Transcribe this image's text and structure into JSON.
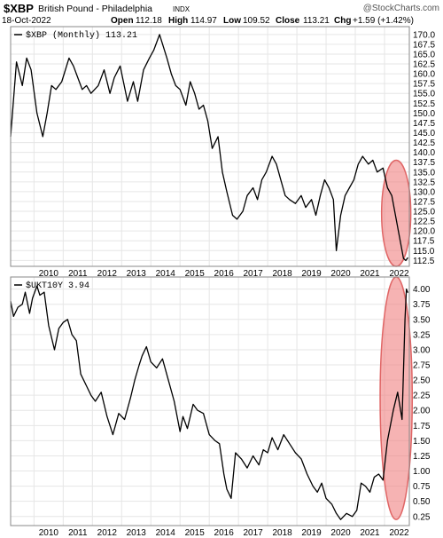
{
  "header": {
    "symbol": "$XBP",
    "name": "British Pound - Philadelphia",
    "exchange": "INDX",
    "date": "18-Oct-2022",
    "open_label": "Open",
    "open": "112.18",
    "high_label": "High",
    "high": "114.97",
    "low_label": "Low",
    "low": "109.52",
    "close_label": "Close",
    "close": "113.21",
    "chg_label": "Chg",
    "chg": "+1.59 (+1.42%)",
    "watermark": "@StockCharts.com"
  },
  "chart_data": [
    {
      "type": "line",
      "legend": "$XBP (Monthly) 113.21",
      "x_range": [
        2009.2,
        2022.85
      ],
      "ylim": [
        111,
        172
      ],
      "y_ticks": [
        112.5,
        115,
        117.5,
        120,
        122.5,
        125,
        127.5,
        130,
        132.5,
        135,
        137.5,
        140,
        142.5,
        145,
        147.5,
        150,
        152.5,
        155,
        157.5,
        160,
        162.5,
        165,
        167.5,
        170
      ],
      "x_ticks": [
        "2010",
        "2011",
        "2012",
        "2013",
        "2014",
        "2015",
        "2016",
        "2017",
        "2018",
        "2019",
        "2020",
        "2021",
        "2022"
      ],
      "grid": true,
      "x": [
        2009.2,
        2009.4,
        2009.6,
        2009.75,
        2009.9,
        2010.1,
        2010.3,
        2010.45,
        2010.6,
        2010.75,
        2010.95,
        2011.2,
        2011.35,
        2011.5,
        2011.65,
        2011.8,
        2011.95,
        2012.2,
        2012.4,
        2012.6,
        2012.75,
        2012.95,
        2013.2,
        2013.4,
        2013.55,
        2013.75,
        2013.95,
        2014.1,
        2014.3,
        2014.55,
        2014.7,
        2014.85,
        2015.0,
        2015.2,
        2015.35,
        2015.5,
        2015.65,
        2015.8,
        2015.95,
        2016.1,
        2016.3,
        2016.45,
        2016.6,
        2016.8,
        2016.95,
        2017.15,
        2017.3,
        2017.5,
        2017.65,
        2017.8,
        2017.95,
        2018.15,
        2018.3,
        2018.45,
        2018.6,
        2018.75,
        2018.95,
        2019.15,
        2019.3,
        2019.5,
        2019.65,
        2019.8,
        2019.95,
        2020.1,
        2020.25,
        2020.35,
        2020.5,
        2020.65,
        2020.8,
        2020.95,
        2021.1,
        2021.25,
        2021.45,
        2021.6,
        2021.75,
        2021.95,
        2022.1,
        2022.25,
        2022.35,
        2022.45,
        2022.55,
        2022.65,
        2022.73,
        2022.8
      ],
      "values": [
        144,
        163,
        157,
        164,
        161,
        150,
        144,
        150,
        157,
        156,
        158,
        164,
        162,
        159,
        156,
        157,
        155,
        157,
        161,
        155,
        159,
        162,
        153,
        158,
        153,
        161,
        164,
        166,
        170,
        164,
        160,
        157,
        156,
        152,
        158,
        155,
        151,
        152,
        148,
        141,
        144,
        135,
        130,
        124,
        123,
        125,
        129,
        131,
        128,
        133,
        135,
        139,
        137,
        133,
        129,
        128,
        127,
        129,
        126,
        128,
        124,
        129,
        133,
        131,
        128,
        115,
        124,
        129,
        131,
        133,
        137,
        139,
        137,
        138,
        135,
        136,
        131,
        129,
        125,
        121,
        117,
        113,
        112.5,
        113.21
      ]
    },
    {
      "type": "line",
      "legend": "$UKT10Y 3.94",
      "x_range": [
        2009.2,
        2022.85
      ],
      "ylim": [
        0.1,
        4.2
      ],
      "y_ticks": [
        0.25,
        0.5,
        0.75,
        1.0,
        1.25,
        1.5,
        1.75,
        2.0,
        2.25,
        2.5,
        2.75,
        3.0,
        3.25,
        3.5,
        3.75,
        4.0
      ],
      "y_tick_labels": [
        "0.25",
        "0.50",
        "0.75",
        "1.00",
        "1.25",
        "1.50",
        "1.75",
        "2.00",
        "2.25",
        "2.50",
        "2.75",
        "3.00",
        "3.25",
        "3.50",
        "3.75",
        "4.00"
      ],
      "x_ticks": [
        "2010",
        "2011",
        "2012",
        "2013",
        "2014",
        "2015",
        "2016",
        "2017",
        "2018",
        "2019",
        "2020",
        "2021",
        "2022"
      ],
      "grid": true,
      "x": [
        2009.2,
        2009.3,
        2009.45,
        2009.6,
        2009.7,
        2009.85,
        2009.95,
        2010.1,
        2010.2,
        2010.35,
        2010.5,
        2010.7,
        2010.85,
        2011.0,
        2011.15,
        2011.3,
        2011.45,
        2011.6,
        2011.8,
        2011.95,
        2012.1,
        2012.3,
        2012.5,
        2012.7,
        2012.9,
        2013.1,
        2013.3,
        2013.45,
        2013.6,
        2013.7,
        2013.85,
        2014.0,
        2014.2,
        2014.4,
        2014.6,
        2014.8,
        2015.0,
        2015.1,
        2015.25,
        2015.45,
        2015.6,
        2015.8,
        2016.0,
        2016.2,
        2016.35,
        2016.5,
        2016.6,
        2016.75,
        2016.9,
        2017.1,
        2017.3,
        2017.5,
        2017.7,
        2017.85,
        2018.0,
        2018.15,
        2018.35,
        2018.55,
        2018.75,
        2018.95,
        2019.15,
        2019.35,
        2019.55,
        2019.7,
        2019.85,
        2020.0,
        2020.2,
        2020.35,
        2020.5,
        2020.7,
        2020.9,
        2021.05,
        2021.2,
        2021.35,
        2021.5,
        2021.65,
        2021.8,
        2021.95,
        2022.1,
        2022.3,
        2022.45,
        2022.6,
        2022.7,
        2022.75,
        2022.8
      ],
      "values": [
        3.8,
        3.55,
        3.7,
        3.75,
        3.95,
        3.6,
        3.85,
        4.05,
        3.9,
        3.95,
        3.4,
        3.0,
        3.35,
        3.45,
        3.5,
        3.25,
        3.15,
        2.6,
        2.4,
        2.25,
        2.15,
        2.3,
        1.9,
        1.6,
        1.95,
        1.85,
        2.2,
        2.5,
        2.75,
        2.9,
        3.05,
        2.8,
        2.7,
        2.85,
        2.5,
        2.15,
        1.65,
        1.9,
        1.7,
        2.1,
        2.0,
        1.95,
        1.6,
        1.5,
        1.45,
        0.95,
        0.7,
        0.55,
        1.3,
        1.2,
        1.05,
        1.25,
        1.1,
        1.35,
        1.3,
        1.55,
        1.35,
        1.6,
        1.45,
        1.3,
        1.2,
        0.95,
        0.75,
        0.65,
        0.8,
        0.55,
        0.45,
        0.3,
        0.2,
        0.3,
        0.25,
        0.35,
        0.8,
        0.75,
        0.65,
        0.9,
        0.95,
        0.85,
        1.5,
        2.0,
        2.3,
        1.85,
        3.5,
        4.0,
        3.94
      ]
    }
  ],
  "highlights": [
    {
      "panel": 0,
      "x_center": 2022.4,
      "x_radius": 0.5,
      "y_center": 124.5,
      "y_radius": 13.5,
      "fill": "#f08080",
      "stroke": "#e06666"
    },
    {
      "panel": 1,
      "x_center": 2022.4,
      "x_radius": 0.55,
      "y_center": 2.2,
      "y_radius": 2.0,
      "fill": "#f08080",
      "stroke": "#e06666"
    }
  ],
  "colors": {
    "line": "#000000",
    "grid": "#e6e6e6",
    "frame": "#888888",
    "highlight_fill": "#f08080"
  }
}
